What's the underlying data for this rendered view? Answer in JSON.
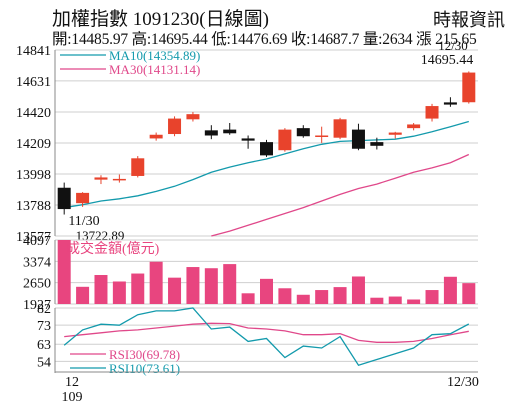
{
  "header": {
    "title": "加權指數 1091230(日線圖)",
    "source": "時報資訊",
    "stats": "開:14485.97 高:14695.44 低:14476.69 收:14687.7 量:2634 漲 215.65"
  },
  "chart_data": [
    {
      "type": "candlestick",
      "yticks": [
        13577,
        13788,
        13998,
        14209,
        14420,
        14631,
        14841
      ],
      "ylim": [
        13577,
        14841
      ],
      "candles": [
        {
          "o": 13905,
          "h": 13940,
          "l": 13722.89,
          "c": 13760
        },
        {
          "o": 13800,
          "h": 13875,
          "l": 13775,
          "c": 13870
        },
        {
          "o": 13960,
          "h": 13990,
          "l": 13930,
          "c": 13975
        },
        {
          "o": 13965,
          "h": 13995,
          "l": 13940,
          "c": 13965
        },
        {
          "o": 13985,
          "h": 14120,
          "l": 13975,
          "c": 14105
        },
        {
          "o": 14240,
          "h": 14280,
          "l": 14225,
          "c": 14265
        },
        {
          "o": 14270,
          "h": 14390,
          "l": 14255,
          "c": 14375
        },
        {
          "o": 14370,
          "h": 14420,
          "l": 14355,
          "c": 14405
        },
        {
          "o": 14295,
          "h": 14330,
          "l": 14235,
          "c": 14260
        },
        {
          "o": 14300,
          "h": 14345,
          "l": 14265,
          "c": 14275
        },
        {
          "o": 14240,
          "h": 14260,
          "l": 14170,
          "c": 14225
        },
        {
          "o": 14215,
          "h": 14230,
          "l": 14115,
          "c": 14125
        },
        {
          "o": 14160,
          "h": 14310,
          "l": 14150,
          "c": 14300
        },
        {
          "o": 14310,
          "h": 14330,
          "l": 14245,
          "c": 14255
        },
        {
          "o": 14260,
          "h": 14320,
          "l": 14210,
          "c": 14260
        },
        {
          "o": 14245,
          "h": 14380,
          "l": 14235,
          "c": 14370
        },
        {
          "o": 14300,
          "h": 14340,
          "l": 14160,
          "c": 14170
        },
        {
          "o": 14215,
          "h": 14245,
          "l": 14165,
          "c": 14190
        },
        {
          "o": 14265,
          "h": 14285,
          "l": 14240,
          "c": 14280
        },
        {
          "o": 14310,
          "h": 14345,
          "l": 14295,
          "c": 14335
        },
        {
          "o": 14375,
          "h": 14475,
          "l": 14355,
          "c": 14460
        },
        {
          "o": 14485,
          "h": 14520,
          "l": 14455,
          "c": 14470
        },
        {
          "o": 14485.97,
          "h": 14695.44,
          "l": 14476.69,
          "c": 14687.7
        }
      ],
      "ma10": [
        13770,
        13790,
        13815,
        13830,
        13850,
        13880,
        13915,
        13960,
        14010,
        14045,
        14075,
        14100,
        14135,
        14170,
        14200,
        14220,
        14225,
        14230,
        14235,
        14255,
        14285,
        14320,
        14354.89
      ],
      "ma30": [
        null,
        null,
        null,
        null,
        null,
        null,
        null,
        null,
        13577,
        13610,
        13650,
        13690,
        13730,
        13770,
        13815,
        13860,
        13900,
        13930,
        13970,
        14010,
        14040,
        14075,
        14131.14
      ],
      "legend": [
        {
          "name": "MA10(14354.89)",
          "color": "#139aac"
        },
        {
          "name": "MA30(14131.14)",
          "color": "#e0488a"
        }
      ],
      "annotations": {
        "low_date": "11/30",
        "low_value": "13722.89",
        "high_date": "12/30",
        "high_value": "14695.44"
      }
    },
    {
      "type": "bar",
      "title": "成交金額(億元)",
      "yticks": [
        1927,
        2650,
        3374,
        4097
      ],
      "ylim": [
        1927,
        4097
      ],
      "values": [
        4097,
        2510,
        2910,
        2690,
        2960,
        3360,
        2820,
        3180,
        3140,
        3280,
        2290,
        2780,
        2460,
        2240,
        2400,
        2500,
        2860,
        2140,
        2180,
        2080,
        2400,
        2850,
        2634
      ]
    },
    {
      "type": "line",
      "yticks": [
        54,
        63,
        73,
        82
      ],
      "ylim": [
        50,
        82
      ],
      "series": [
        {
          "name": "RSI30(69.78)",
          "color": "#e0488a",
          "values": [
            67,
            68,
            69,
            70,
            70.5,
            71.5,
            72.5,
            73.5,
            74,
            73.8,
            71.5,
            71,
            70,
            68,
            68,
            68.5,
            65,
            64,
            64,
            64.5,
            66,
            68,
            69.78
          ]
        },
        {
          "name": "RSI10(73.61)",
          "color": "#139aac",
          "values": [
            62.5,
            70.5,
            73.5,
            73,
            78.5,
            80.5,
            80.5,
            82,
            71,
            72,
            64.5,
            66,
            56,
            62,
            61,
            67,
            52,
            55,
            58,
            61,
            68,
            68.5,
            73.61
          ]
        }
      ]
    }
  ],
  "x_axis": {
    "left_top": "12",
    "left_bottom": "109",
    "right": "12/30"
  },
  "colors": {
    "up": "#e8432c",
    "down": "#111111",
    "volume": "#e8457f",
    "grid": "#cfcfcf"
  }
}
